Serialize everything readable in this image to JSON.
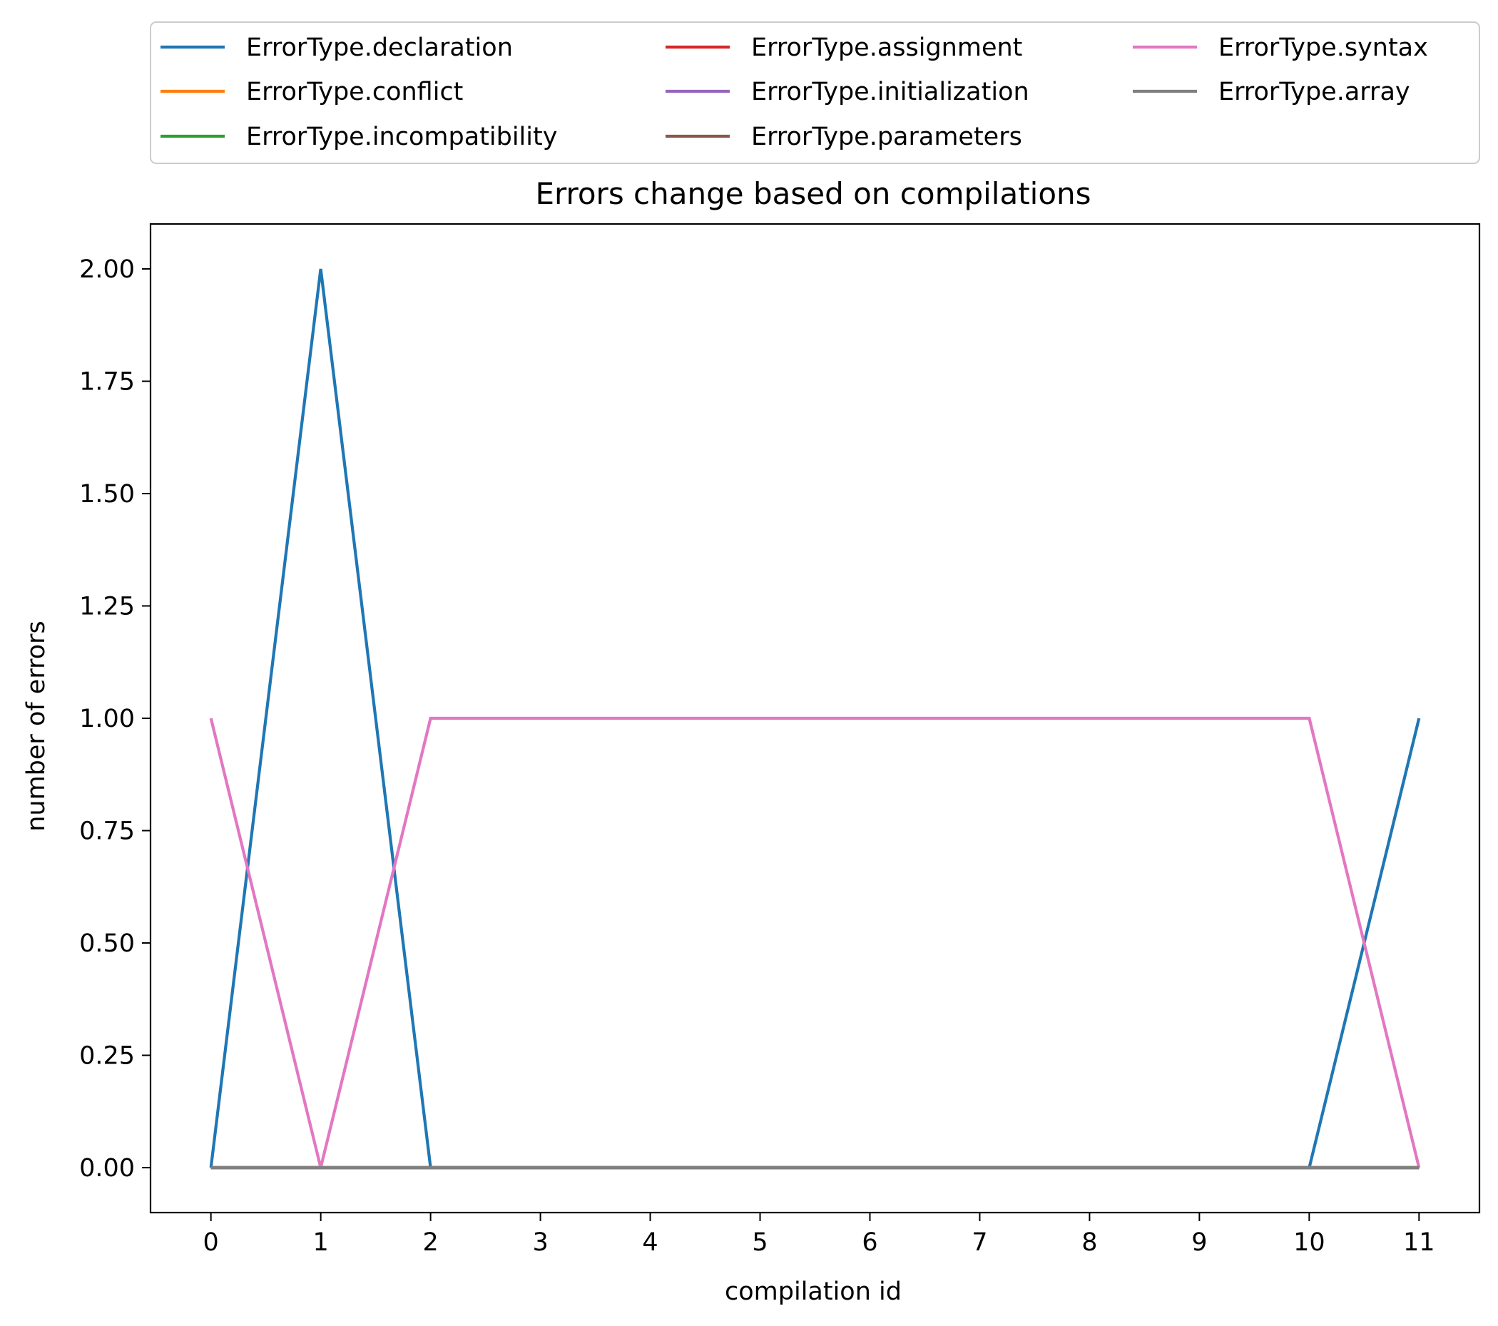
{
  "chart_data": {
    "type": "line",
    "title": "Errors change based on compilations",
    "xlabel": "compilation id",
    "ylabel": "number of errors",
    "x": [
      0,
      1,
      2,
      3,
      4,
      5,
      6,
      7,
      8,
      9,
      10,
      11
    ],
    "xlim": [
      -0.55,
      11.55
    ],
    "ylim": [
      -0.1,
      2.1
    ],
    "xticks": [
      "0",
      "1",
      "2",
      "3",
      "4",
      "5",
      "6",
      "7",
      "8",
      "9",
      "10",
      "11"
    ],
    "yticks": [
      "0.00",
      "0.25",
      "0.50",
      "0.75",
      "1.00",
      "1.25",
      "1.50",
      "1.75",
      "2.00"
    ],
    "grid": false,
    "legend_position": "top",
    "legend_columns": 3,
    "series": [
      {
        "name": "ErrorType.declaration",
        "color": "#1f77b4",
        "values": [
          0,
          2,
          0,
          0,
          0,
          0,
          0,
          0,
          0,
          0,
          0,
          1
        ]
      },
      {
        "name": "ErrorType.conflict",
        "color": "#ff7f0e",
        "values": [
          0,
          0,
          0,
          0,
          0,
          0,
          0,
          0,
          0,
          0,
          0,
          0
        ]
      },
      {
        "name": "ErrorType.incompatibility",
        "color": "#2ca02c",
        "values": [
          0,
          0,
          0,
          0,
          0,
          0,
          0,
          0,
          0,
          0,
          0,
          0
        ]
      },
      {
        "name": "ErrorType.assignment",
        "color": "#d62728",
        "values": [
          0,
          0,
          0,
          0,
          0,
          0,
          0,
          0,
          0,
          0,
          0,
          0
        ]
      },
      {
        "name": "ErrorType.initialization",
        "color": "#9467bd",
        "values": [
          0,
          0,
          0,
          0,
          0,
          0,
          0,
          0,
          0,
          0,
          0,
          0
        ]
      },
      {
        "name": "ErrorType.parameters",
        "color": "#8c564b",
        "values": [
          0,
          0,
          0,
          0,
          0,
          0,
          0,
          0,
          0,
          0,
          0,
          0
        ]
      },
      {
        "name": "ErrorType.syntax",
        "color": "#e377c2",
        "values": [
          1,
          0,
          1,
          1,
          1,
          1,
          1,
          1,
          1,
          1,
          1,
          0
        ]
      },
      {
        "name": "ErrorType.array",
        "color": "#7f7f7f",
        "values": [
          0,
          0,
          0,
          0,
          0,
          0,
          0,
          0,
          0,
          0,
          0,
          0
        ]
      }
    ]
  }
}
